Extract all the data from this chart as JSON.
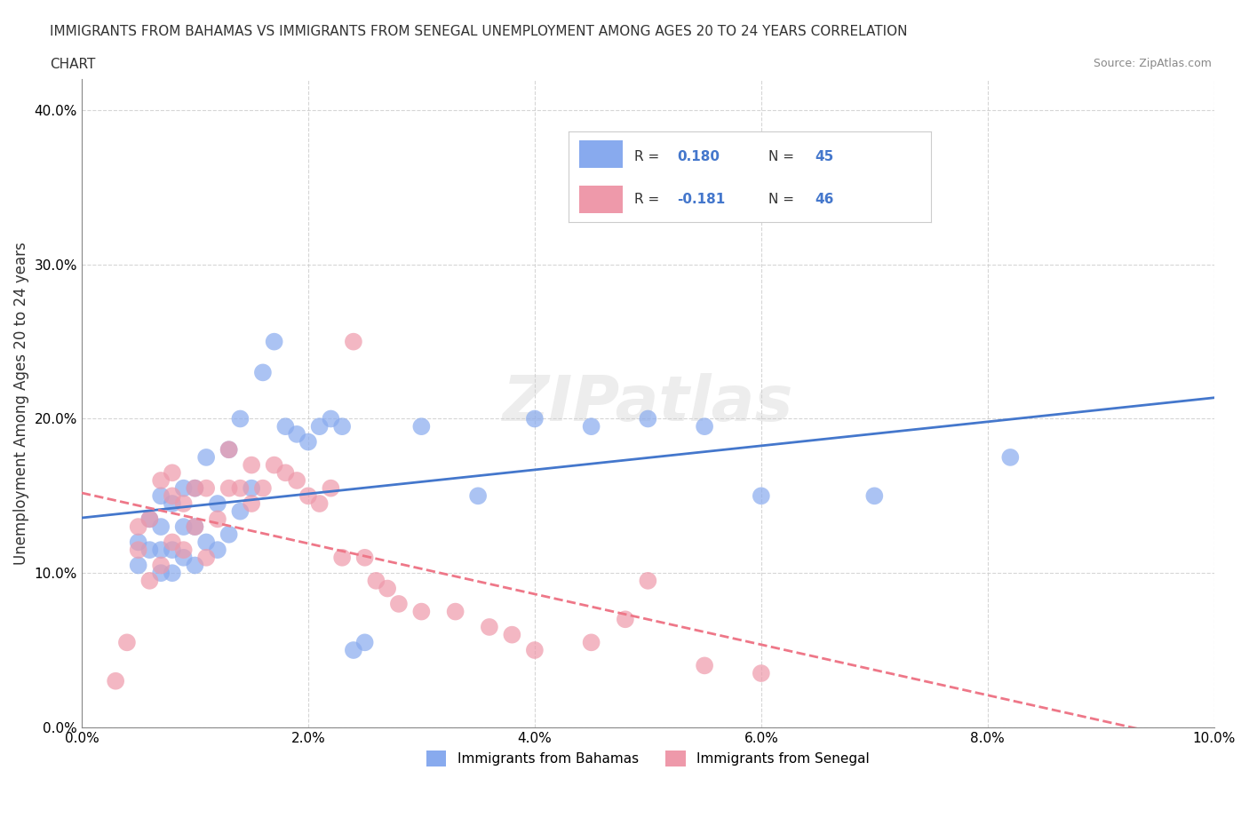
{
  "title_line1": "IMMIGRANTS FROM BAHAMAS VS IMMIGRANTS FROM SENEGAL UNEMPLOYMENT AMONG AGES 20 TO 24 YEARS CORRELATION",
  "title_line2": "CHART",
  "source": "Source: ZipAtlas.com",
  "ylabel": "Unemployment Among Ages 20 to 24 years",
  "xlabel_ticks": [
    "0.0%",
    "2.0%",
    "4.0%",
    "6.0%",
    "8.0%",
    "10.0%"
  ],
  "ylabel_ticks": [
    "10.0%",
    "20.0%",
    "30.0%",
    "40.0%"
  ],
  "xlim": [
    0,
    0.1
  ],
  "ylim": [
    0,
    0.42
  ],
  "bahamas_R": "0.180",
  "bahamas_N": "45",
  "senegal_R": "-0.181",
  "senegal_N": "46",
  "bahamas_color": "#88aaee",
  "senegal_color": "#ee99aa",
  "bahamas_line_color": "#4477cc",
  "senegal_line_color": "#ee7788",
  "grid_color": "#cccccc",
  "background_color": "#ffffff",
  "watermark_color": "#cccccc",
  "watermark_text": "ZIPatlas",
  "bahamas_x": [
    0.005,
    0.005,
    0.006,
    0.006,
    0.007,
    0.007,
    0.007,
    0.007,
    0.008,
    0.008,
    0.008,
    0.009,
    0.009,
    0.009,
    0.01,
    0.01,
    0.01,
    0.011,
    0.011,
    0.012,
    0.012,
    0.013,
    0.013,
    0.014,
    0.014,
    0.015,
    0.016,
    0.017,
    0.018,
    0.019,
    0.02,
    0.021,
    0.022,
    0.023,
    0.024,
    0.025,
    0.03,
    0.035,
    0.04,
    0.045,
    0.05,
    0.055,
    0.06,
    0.07,
    0.082
  ],
  "bahamas_y": [
    0.105,
    0.12,
    0.115,
    0.135,
    0.1,
    0.115,
    0.13,
    0.15,
    0.1,
    0.115,
    0.145,
    0.11,
    0.13,
    0.155,
    0.105,
    0.13,
    0.155,
    0.12,
    0.175,
    0.115,
    0.145,
    0.125,
    0.18,
    0.14,
    0.2,
    0.155,
    0.23,
    0.25,
    0.195,
    0.19,
    0.185,
    0.195,
    0.2,
    0.195,
    0.05,
    0.055,
    0.195,
    0.15,
    0.2,
    0.195,
    0.2,
    0.195,
    0.15,
    0.15,
    0.175
  ],
  "senegal_x": [
    0.003,
    0.004,
    0.005,
    0.005,
    0.006,
    0.006,
    0.007,
    0.007,
    0.008,
    0.008,
    0.008,
    0.009,
    0.009,
    0.01,
    0.01,
    0.011,
    0.011,
    0.012,
    0.013,
    0.013,
    0.014,
    0.015,
    0.015,
    0.016,
    0.017,
    0.018,
    0.019,
    0.02,
    0.021,
    0.022,
    0.023,
    0.024,
    0.025,
    0.026,
    0.027,
    0.028,
    0.03,
    0.033,
    0.036,
    0.038,
    0.04,
    0.045,
    0.048,
    0.05,
    0.055,
    0.06
  ],
  "senegal_y": [
    0.03,
    0.055,
    0.115,
    0.13,
    0.095,
    0.135,
    0.105,
    0.16,
    0.12,
    0.15,
    0.165,
    0.115,
    0.145,
    0.13,
    0.155,
    0.11,
    0.155,
    0.135,
    0.155,
    0.18,
    0.155,
    0.145,
    0.17,
    0.155,
    0.17,
    0.165,
    0.16,
    0.15,
    0.145,
    0.155,
    0.11,
    0.25,
    0.11,
    0.095,
    0.09,
    0.08,
    0.075,
    0.075,
    0.065,
    0.06,
    0.05,
    0.055,
    0.07,
    0.095,
    0.04,
    0.035
  ]
}
